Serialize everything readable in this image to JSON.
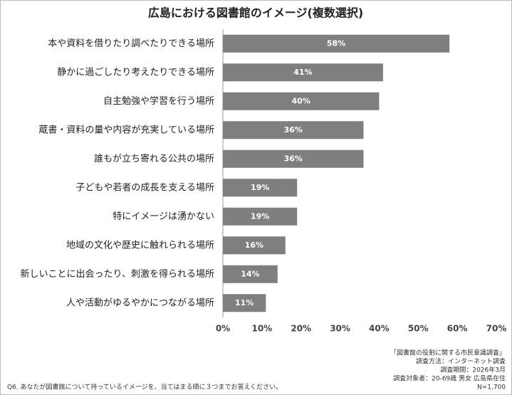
{
  "chart_data": {
    "type": "hbar",
    "title": "広島における図書館のイメージ(複数選択)",
    "categories": [
      "本や資料を借りたり調べたりできる場所",
      "静かに過ごしたり考えたりできる場所",
      "自主勉強や学習を行う場所",
      "蔵書・資料の量や内容が充実している場所",
      "誰もが立ち寄れる公共の場所",
      "子どもや若者の成長を支える場所",
      "特にイメージは湧かない",
      "地域の文化や歴史に触れられる場所",
      "新しいことに出会ったり、刺激を得られる場所",
      "人や活動がゆるやかにつながる場所"
    ],
    "values": [
      58,
      41,
      40,
      36,
      36,
      19,
      19,
      16,
      14,
      11
    ],
    "value_labels": [
      "58%",
      "41%",
      "40%",
      "36%",
      "36%",
      "19%",
      "19%",
      "16%",
      "14%",
      "11%"
    ],
    "color": "#7f7f7f",
    "xlim": [
      0,
      70
    ],
    "xticks": [
      {
        "value": 0,
        "label": "0%"
      },
      {
        "value": 10,
        "label": "10%"
      },
      {
        "value": 20,
        "label": "20%"
      },
      {
        "value": 30,
        "label": "30%"
      },
      {
        "value": 40,
        "label": "40%"
      },
      {
        "value": 50,
        "label": "50%"
      },
      {
        "value": 60,
        "label": "60%"
      },
      {
        "value": 70,
        "label": "70%"
      }
    ],
    "grid": false,
    "notes": [
      "「図書館の役割に関する市民意識調査」",
      "調査方法：インターネット調査",
      "調査期間：2026年3月",
      "調査対象者：20-69歳 男女 広島県在住",
      "N=1,700"
    ],
    "question": "Q6. あなたが図書館について持っているイメージを、当てはまる順に３つまでお答えください。"
  }
}
